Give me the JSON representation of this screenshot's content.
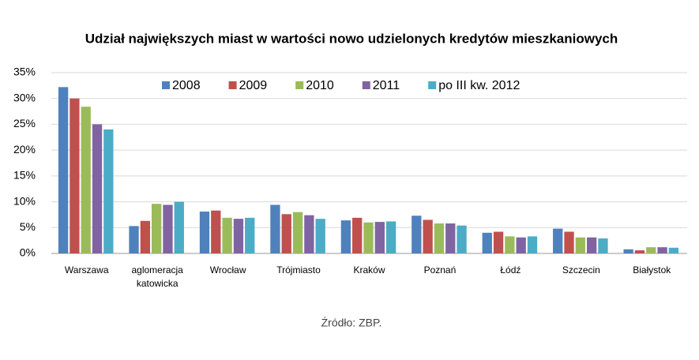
{
  "chart_data": {
    "type": "bar",
    "title": "Udział największych miast w wartości nowo udzielonych kredytów mieszkaniowych",
    "source": "Źródło: ZBP.",
    "categories": [
      "Warszawa",
      "aglomeracja katowicka",
      "Wrocław",
      "Trójmiasto",
      "Kraków",
      "Poznań",
      "Łódź",
      "Szczecin",
      "Białystok"
    ],
    "series": [
      {
        "name": "2008",
        "color": "#4f81bd",
        "values": [
          32.2,
          5.3,
          8.1,
          9.4,
          6.4,
          7.3,
          4.0,
          4.8,
          0.8
        ]
      },
      {
        "name": "2009",
        "color": "#c0504d",
        "values": [
          30.0,
          6.3,
          8.3,
          7.6,
          6.9,
          6.5,
          4.2,
          4.2,
          0.6
        ]
      },
      {
        "name": "2010",
        "color": "#9bbb59",
        "values": [
          28.4,
          9.6,
          6.9,
          8.0,
          6.0,
          5.8,
          3.3,
          3.1,
          1.2
        ]
      },
      {
        "name": "2011",
        "color": "#8064a2",
        "values": [
          25.0,
          9.4,
          6.7,
          7.4,
          6.1,
          5.8,
          3.1,
          3.1,
          1.2
        ]
      },
      {
        "name": "po III kw. 2012",
        "color": "#4bacc6",
        "values": [
          24.0,
          10.0,
          6.9,
          6.7,
          6.2,
          5.4,
          3.3,
          2.9,
          1.1
        ]
      }
    ],
    "ylim": [
      0,
      35
    ],
    "yticks": [
      {
        "value": 0,
        "label": "0%"
      },
      {
        "value": 5,
        "label": "5%"
      },
      {
        "value": 10,
        "label": "10%"
      },
      {
        "value": 15,
        "label": "15%"
      },
      {
        "value": 20,
        "label": "20%"
      },
      {
        "value": 25,
        "label": "25%"
      },
      {
        "value": 30,
        "label": "30%"
      },
      {
        "value": 35,
        "label": "35%"
      }
    ],
    "grid": true,
    "legend": "top"
  }
}
